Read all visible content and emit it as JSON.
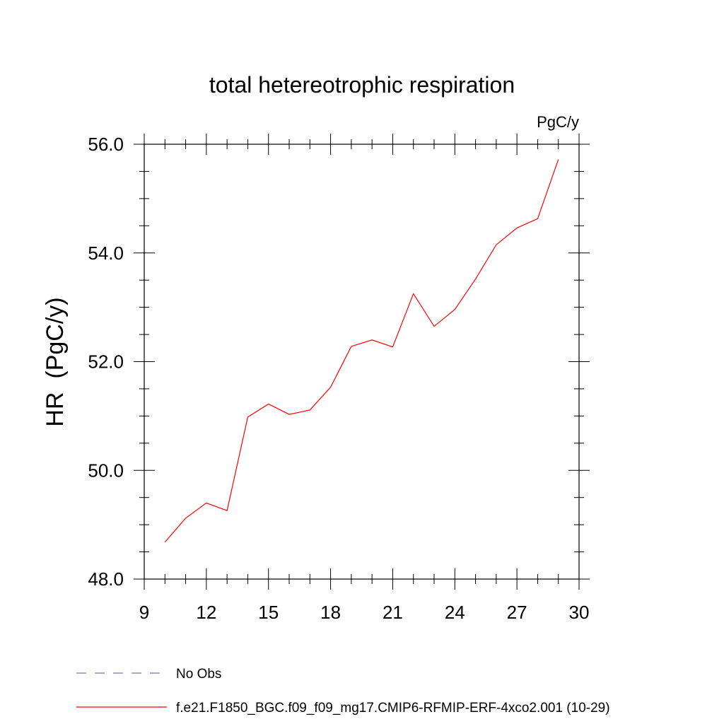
{
  "chart_data": {
    "type": "line",
    "title": "total hetereotrophic respiration",
    "units_label": "PgC/y",
    "ylabel": "HR  (PgC/y)",
    "xlabel": "",
    "xlim": [
      9,
      30
    ],
    "ylim": [
      48.0,
      56.0
    ],
    "x_ticks": [
      "9",
      "12",
      "15",
      "18",
      "21",
      "24",
      "27",
      "30"
    ],
    "y_ticks": [
      "48.0",
      "50.0",
      "52.0",
      "54.0",
      "56.0"
    ],
    "grid": false,
    "series": [
      {
        "name": "f.e21.F1850_BGC.f09_f09_mg17.CMIP6-RFMIP-ERF-4xco2.001 (10-29)",
        "color": "#ff0000",
        "style": "solid",
        "x": [
          10,
          11,
          12,
          13,
          14,
          15,
          16,
          17,
          18,
          19,
          20,
          21,
          22,
          23,
          24,
          25,
          26,
          27,
          28,
          29
        ],
        "values": [
          48.68,
          49.12,
          49.4,
          49.26,
          50.98,
          51.22,
          51.03,
          51.11,
          51.53,
          52.28,
          52.4,
          52.27,
          53.25,
          52.65,
          52.96,
          53.52,
          54.15,
          54.46,
          54.63,
          55.72
        ]
      }
    ],
    "legend": [
      {
        "label": "No Obs",
        "color": "#7b6fb0",
        "style": "dashed"
      },
      {
        "label": "f.e21.F1850_BGC.f09_f09_mg17.CMIP6-RFMIP-ERF-4xco2.001 (10-29)",
        "color": "#ff0000",
        "style": "solid"
      }
    ],
    "legend_position": "bottom"
  }
}
